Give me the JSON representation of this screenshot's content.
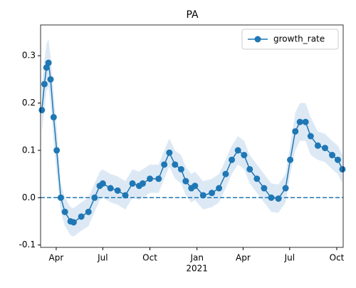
{
  "chart_data": {
    "type": "line",
    "title": "PA",
    "x": [
      3,
      8,
      12,
      16,
      20,
      26,
      32,
      40,
      48,
      59,
      65,
      80,
      94,
      106,
      116,
      122,
      137,
      151,
      166,
      180,
      193,
      200,
      214,
      231,
      242,
      252,
      263,
      275,
      284,
      295,
      302,
      318,
      335,
      349,
      362,
      374,
      386,
      398,
      409,
      423,
      437,
      451,
      465,
      479,
      488,
      498,
      507,
      518,
      528,
      542,
      556,
      570,
      581,
      590
    ],
    "series": [
      {
        "name": "growth_rate",
        "color": "#1f77b4",
        "values": [
          0.185,
          0.24,
          0.275,
          0.285,
          0.25,
          0.17,
          0.1,
          0.0,
          -0.03,
          -0.05,
          -0.052,
          -0.04,
          -0.03,
          0.0,
          0.025,
          0.03,
          0.02,
          0.015,
          0.005,
          0.03,
          0.025,
          0.03,
          0.04,
          0.04,
          0.07,
          0.095,
          0.07,
          0.06,
          0.035,
          0.02,
          0.025,
          0.005,
          0.01,
          0.02,
          0.05,
          0.08,
          0.1,
          0.09,
          0.06,
          0.04,
          0.02,
          0.0,
          -0.002,
          0.02,
          0.08,
          0.14,
          0.16,
          0.16,
          0.13,
          0.11,
          0.105,
          0.09,
          0.08,
          0.06
        ],
        "upper": [
          0.235,
          0.29,
          0.325,
          0.335,
          0.3,
          0.22,
          0.15,
          0.03,
          0.0,
          -0.02,
          -0.022,
          -0.01,
          0.0,
          0.03,
          0.055,
          0.06,
          0.05,
          0.045,
          0.035,
          0.06,
          0.055,
          0.06,
          0.07,
          0.07,
          0.1,
          0.125,
          0.1,
          0.09,
          0.065,
          0.05,
          0.055,
          0.035,
          0.04,
          0.05,
          0.08,
          0.11,
          0.13,
          0.12,
          0.09,
          0.07,
          0.05,
          0.03,
          0.028,
          0.05,
          0.11,
          0.18,
          0.2,
          0.2,
          0.17,
          0.14,
          0.135,
          0.12,
          0.11,
          0.09
        ],
        "lower": [
          0.135,
          0.19,
          0.225,
          0.235,
          0.2,
          0.12,
          0.05,
          -0.03,
          -0.06,
          -0.08,
          -0.082,
          -0.07,
          -0.06,
          -0.03,
          -0.005,
          0.0,
          -0.01,
          -0.015,
          -0.025,
          0.0,
          -0.005,
          0.0,
          0.01,
          0.01,
          0.04,
          0.065,
          0.04,
          0.03,
          0.005,
          -0.01,
          -0.005,
          -0.025,
          -0.02,
          -0.01,
          0.02,
          0.05,
          0.07,
          0.06,
          0.03,
          0.01,
          -0.01,
          -0.03,
          -0.032,
          -0.01,
          0.05,
          0.1,
          0.12,
          0.12,
          0.09,
          0.08,
          0.075,
          0.06,
          0.05,
          0.03
        ],
        "band_color": "#dce9f5"
      }
    ],
    "hline": 0,
    "xlim": [
      0.5,
      591.5
    ],
    "xticks": [
      {
        "value": 31,
        "label": "Apr"
      },
      {
        "value": 122,
        "label": "Jul"
      },
      {
        "value": 214,
        "label": "Oct"
      },
      {
        "value": 306,
        "label": "Jan"
      },
      {
        "value": 396,
        "label": "Apr"
      },
      {
        "value": 487,
        "label": "Jul"
      },
      {
        "value": 579,
        "label": "Oct"
      }
    ],
    "x_year_label": "2021",
    "ylim": [
      -0.105,
      0.365
    ],
    "yticks": [
      -0.1,
      {
        "value": 0,
        "label": "0.0"
      },
      0.1,
      0.2,
      0.3
    ],
    "legend": "upper right"
  }
}
